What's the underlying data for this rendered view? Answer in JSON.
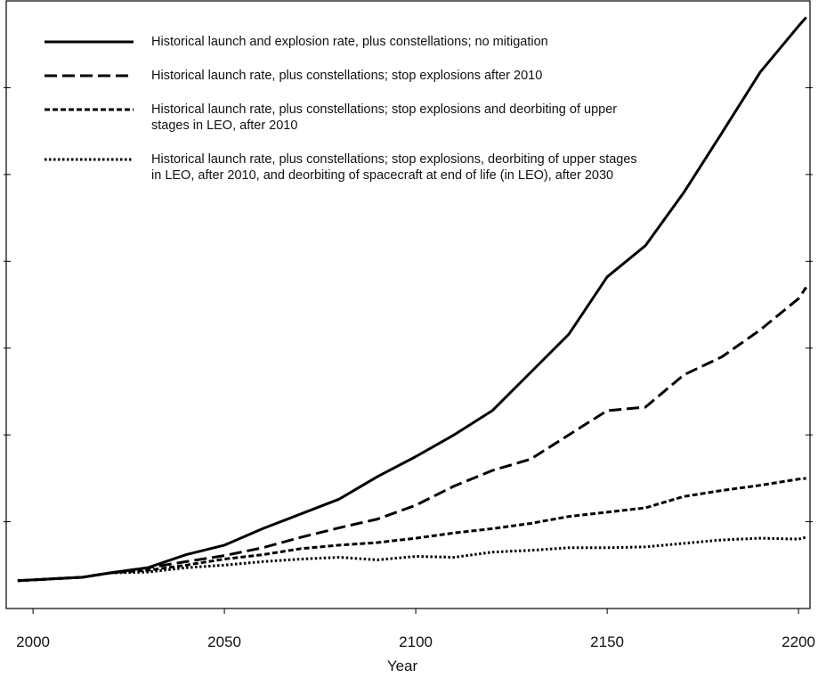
{
  "chart_data": {
    "type": "line",
    "xlabel": "Year",
    "x": [
      1996,
      2013,
      2020,
      2030,
      2040,
      2050,
      2060,
      2070,
      2080,
      2090,
      2100,
      2110,
      2120,
      2130,
      2140,
      2150,
      2160,
      2170,
      2180,
      2190,
      2200,
      2202
    ],
    "series": [
      {
        "name": "Historical launch and explosion rate, plus constellations; no mitigation",
        "color": "#000000",
        "style": "solid",
        "values": [
          0.32,
          0.36,
          0.41,
          0.47,
          0.62,
          0.73,
          0.92,
          1.09,
          1.26,
          1.52,
          1.75,
          2.0,
          2.28,
          2.72,
          3.16,
          3.82,
          4.18,
          4.79,
          5.48,
          6.18,
          6.71,
          6.81
        ]
      },
      {
        "name": "Historical launch rate, plus constellations; stop explosions after 2010",
        "color": "#000000",
        "style": "dashed",
        "values": [
          0.32,
          0.36,
          0.41,
          0.47,
          0.54,
          0.61,
          0.7,
          0.82,
          0.93,
          1.03,
          1.19,
          1.41,
          1.59,
          1.72,
          2.0,
          2.28,
          2.32,
          2.69,
          2.9,
          3.21,
          3.57,
          3.7
        ]
      },
      {
        "name": "Historical launch rate, plus constellations; stop explosions and deorbiting of upper stages in LEO, after 2010",
        "color": "#000000",
        "style": "short-dashed",
        "values": [
          0.32,
          0.36,
          0.41,
          0.44,
          0.5,
          0.57,
          0.62,
          0.69,
          0.73,
          0.76,
          0.81,
          0.87,
          0.92,
          0.98,
          1.06,
          1.11,
          1.16,
          1.29,
          1.36,
          1.42,
          1.49,
          1.5
        ]
      },
      {
        "name": "Historical launch rate, plus constellations; stop explosions, deorbiting of upper stages in LEO, after 2010, and deorbiting of spacecraft at end of life (in LEO), after 2030",
        "color": "#000000",
        "style": "dotted",
        "values": [
          0.32,
          0.36,
          0.41,
          0.42,
          0.47,
          0.5,
          0.54,
          0.57,
          0.59,
          0.56,
          0.6,
          0.59,
          0.65,
          0.67,
          0.7,
          0.7,
          0.71,
          0.75,
          0.79,
          0.81,
          0.8,
          0.82
        ]
      }
    ],
    "xlim": [
      1993,
      2203
    ],
    "xticks": [
      2000,
      2050,
      2100,
      2150,
      2200
    ],
    "ylim": [
      0,
      7
    ],
    "yticks": [
      1,
      2,
      3,
      4,
      5,
      6
    ],
    "legend": "upper-left"
  }
}
